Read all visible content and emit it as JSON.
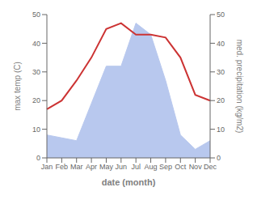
{
  "chart_data": {
    "type": "line",
    "categories": [
      "Jan",
      "Feb",
      "Mar",
      "Apr",
      "May",
      "Jun",
      "Jul",
      "Aug",
      "Sep",
      "Oct",
      "Nov",
      "Dec"
    ],
    "series": [
      {
        "type": "area",
        "color": "#b8c8ee",
        "axis": "y2",
        "values": [
          8,
          7,
          6,
          19,
          32,
          32,
          47,
          43,
          27,
          8,
          3,
          6
        ]
      },
      {
        "type": "line",
        "color": "#cc3333",
        "values": [
          17,
          20,
          27,
          35,
          45,
          47,
          43,
          43,
          42,
          35,
          22,
          20
        ]
      }
    ],
    "xlabel": "date (month)",
    "ylabel": "max temp (C)",
    "y2label": "med. precipitation (kg/m2)",
    "ylim": [
      0,
      50
    ],
    "yticks": [
      0,
      10,
      20,
      30,
      40,
      50
    ],
    "y2lim": [
      0,
      50
    ],
    "y2ticks": [
      0,
      10,
      20,
      30,
      40,
      50
    ],
    "grid": false
  }
}
